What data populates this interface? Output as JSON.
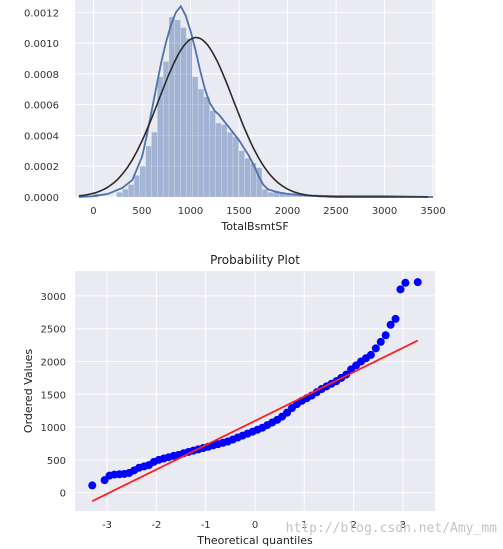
{
  "chart_data": [
    {
      "type": "bar",
      "title": "",
      "xlabel": "TotalBsmtSF",
      "ylabel": "",
      "xlim": [
        -190,
        3520
      ],
      "ylim": [
        0,
        0.00128
      ],
      "xticks": [
        0,
        500,
        1000,
        1500,
        2000,
        2500,
        3000,
        3500
      ],
      "yticks": [
        0.0,
        0.0002,
        0.0004,
        0.0006,
        0.0008,
        0.001,
        0.0012
      ],
      "ytick_labels": [
        "0.0000",
        "0.0002",
        "0.0004",
        "0.0006",
        "0.0008",
        "0.0010",
        "0.0012"
      ],
      "grid": true,
      "histogram": {
        "bin_edges": [
          0,
          60,
          120,
          180,
          240,
          300,
          360,
          420,
          480,
          540,
          600,
          660,
          720,
          780,
          840,
          900,
          960,
          1020,
          1080,
          1140,
          1200,
          1260,
          1320,
          1380,
          1440,
          1500,
          1560,
          1620,
          1680,
          1740,
          1800,
          1860,
          1920,
          1980,
          2040,
          2100,
          2160,
          2220,
          2280,
          2340,
          2400,
          2460,
          2520,
          2580,
          2640,
          2700,
          2760,
          2820,
          2880,
          2940,
          3000,
          3060,
          3120,
          3180,
          3240
        ],
        "density": [
          2e-05,
          0.0,
          0.0,
          0.0,
          3e-05,
          5e-05,
          8e-05,
          0.00014,
          0.0002,
          0.00033,
          0.00042,
          0.00078,
          0.00088,
          0.00117,
          0.00115,
          0.0011,
          0.00103,
          0.00078,
          0.0007,
          0.00065,
          0.00056,
          0.00048,
          0.00047,
          0.00042,
          0.00039,
          0.0003,
          0.00025,
          0.00022,
          0.00019,
          5e-05,
          3e-05,
          4e-05,
          3e-05,
          2e-05,
          2e-05,
          1e-05,
          1e-05,
          1e-05,
          0.0,
          0.0,
          0.0,
          0.0,
          0.0,
          0.0,
          0.0,
          0.0,
          0.0,
          0.0,
          0.0,
          0.0,
          0.0,
          0.0,
          0.0,
          0.0
        ]
      },
      "series": [
        {
          "name": "",
          "kind": "kde",
          "color": "#4c72b0",
          "points": [
            [
              -150,
              0
            ],
            [
              0,
              5e-06
            ],
            [
              150,
              2e-05
            ],
            [
              300,
              6e-05
            ],
            [
              400,
              0.00011
            ],
            [
              500,
              0.00026
            ],
            [
              550,
              0.0004
            ],
            [
              600,
              0.00056
            ],
            [
              650,
              0.00072
            ],
            [
              700,
              0.00088
            ],
            [
              750,
              0.00101
            ],
            [
              800,
              0.00112
            ],
            [
              850,
              0.0012
            ],
            [
              900,
              0.00124
            ],
            [
              950,
              0.00118
            ],
            [
              1000,
              0.00108
            ],
            [
              1050,
              0.00096
            ],
            [
              1100,
              0.00082
            ],
            [
              1150,
              0.0007
            ],
            [
              1200,
              0.00061
            ],
            [
              1250,
              0.00056
            ],
            [
              1300,
              0.00053
            ],
            [
              1350,
              0.00049
            ],
            [
              1400,
              0.00045
            ],
            [
              1450,
              0.00041
            ],
            [
              1500,
              0.00037
            ],
            [
              1550,
              0.00032
            ],
            [
              1600,
              0.00027
            ],
            [
              1650,
              0.00021
            ],
            [
              1700,
              0.00014
            ],
            [
              1750,
              8e-05
            ],
            [
              1800,
              5e-05
            ],
            [
              1900,
              3e-05
            ],
            [
              2000,
              2e-05
            ],
            [
              2200,
              1e-05
            ],
            [
              2500,
              5e-06
            ],
            [
              3000,
              5e-06
            ],
            [
              3200,
              3e-06
            ],
            [
              3500,
              0
            ]
          ]
        },
        {
          "name": "",
          "kind": "normal-fit",
          "color": "#2b2b2b",
          "mean": 1057,
          "std": 385
        }
      ]
    },
    {
      "type": "scatter",
      "title": "Probability Plot",
      "xlabel": "Theoretical quantiles",
      "ylabel": "Ordered Values",
      "xlim": [
        -3.65,
        3.65
      ],
      "ylim": [
        -280,
        3380
      ],
      "xticks": [
        -3,
        -2,
        -1,
        0,
        1,
        2,
        3
      ],
      "yticks": [
        0,
        500,
        1000,
        1500,
        2000,
        2500,
        3000
      ],
      "grid": true,
      "series": [
        {
          "name": "",
          "kind": "ordered-values",
          "color": "#0000ff",
          "points": [
            [
              -3.3,
              110
            ],
            [
              -3.05,
              190
            ],
            [
              -2.95,
              260
            ],
            [
              -2.85,
              275
            ],
            [
              -2.75,
              280
            ],
            [
              -2.65,
              285
            ],
            [
              -2.55,
              300
            ],
            [
              -2.45,
              340
            ],
            [
              -2.35,
              380
            ],
            [
              -2.25,
              400
            ],
            [
              -2.15,
              420
            ],
            [
              -2.05,
              470
            ],
            [
              -1.95,
              500
            ],
            [
              -1.85,
              520
            ],
            [
              -1.75,
              540
            ],
            [
              -1.65,
              560
            ],
            [
              -1.55,
              575
            ],
            [
              -1.45,
              600
            ],
            [
              -1.35,
              620
            ],
            [
              -1.25,
              640
            ],
            [
              -1.15,
              660
            ],
            [
              -1.05,
              680
            ],
            [
              -0.95,
              700
            ],
            [
              -0.85,
              720
            ],
            [
              -0.75,
              740
            ],
            [
              -0.65,
              760
            ],
            [
              -0.55,
              780
            ],
            [
              -0.45,
              810
            ],
            [
              -0.35,
              840
            ],
            [
              -0.25,
              870
            ],
            [
              -0.15,
              900
            ],
            [
              -0.05,
              930
            ],
            [
              0.05,
              960
            ],
            [
              0.15,
              990
            ],
            [
              0.25,
              1030
            ],
            [
              0.35,
              1070
            ],
            [
              0.45,
              1110
            ],
            [
              0.55,
              1160
            ],
            [
              0.65,
              1220
            ],
            [
              0.75,
              1290
            ],
            [
              0.85,
              1350
            ],
            [
              0.95,
              1400
            ],
            [
              1.05,
              1440
            ],
            [
              1.15,
              1480
            ],
            [
              1.25,
              1530
            ],
            [
              1.35,
              1580
            ],
            [
              1.45,
              1620
            ],
            [
              1.55,
              1660
            ],
            [
              1.65,
              1700
            ],
            [
              1.75,
              1750
            ],
            [
              1.85,
              1800
            ],
            [
              1.95,
              1880
            ],
            [
              2.05,
              1940
            ],
            [
              2.15,
              2000
            ],
            [
              2.25,
              2050
            ],
            [
              2.35,
              2100
            ],
            [
              2.45,
              2200
            ],
            [
              2.55,
              2300
            ],
            [
              2.65,
              2400
            ],
            [
              2.75,
              2560
            ],
            [
              2.85,
              2650
            ],
            [
              2.95,
              3100
            ],
            [
              3.05,
              3200
            ],
            [
              3.3,
              3210
            ]
          ]
        },
        {
          "name": "",
          "kind": "fit-line",
          "color": "#ff2020",
          "points": [
            [
              -3.3,
              -130
            ],
            [
              3.3,
              2320
            ]
          ]
        }
      ]
    }
  ],
  "watermark": "http://blog.csdn.net/Amy_mm"
}
